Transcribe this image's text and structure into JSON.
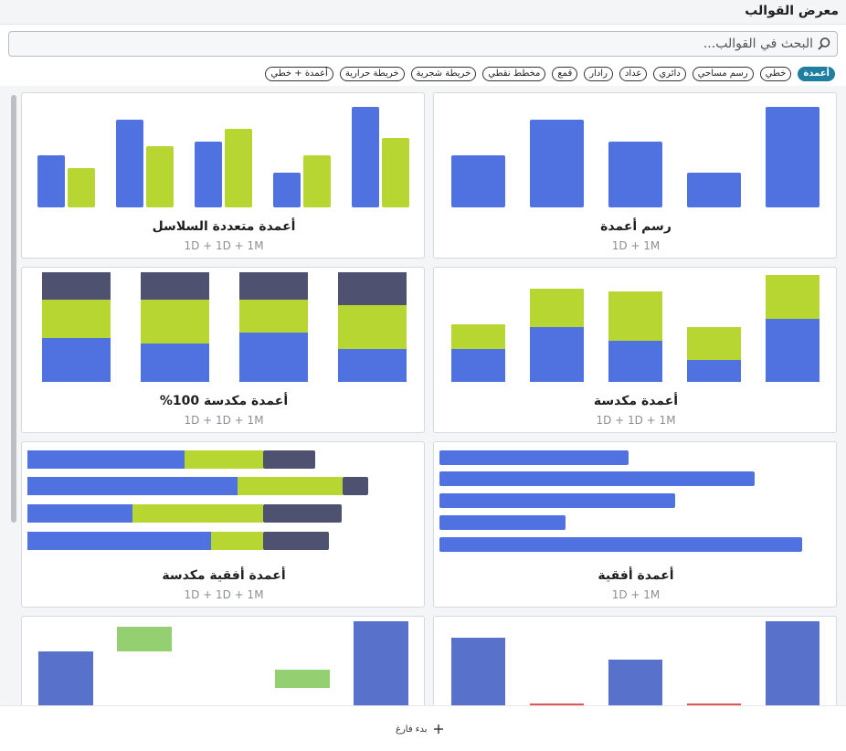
{
  "header": {
    "title": "معرض القوالب"
  },
  "search": {
    "placeholder": "البحث في القوالب..."
  },
  "chips": [
    "أعمدة",
    "خطي",
    "رسم مساحي",
    "دائري",
    "عداد",
    "رادار",
    "قمع",
    "مخطط نقطي",
    "خريطة شجرية",
    "خريطة حرارية",
    "أعمدة + خطي"
  ],
  "active_chip": "أعمدة",
  "colors": {
    "blue": "#5071e0",
    "green": "#b7d632",
    "slate": "#4e5270",
    "wf_blue": "#5872cc",
    "wf_green": "#94cf72",
    "wf_red": "#e05555",
    "accent": "#1e7fa0"
  },
  "cards": [
    {
      "title": "رسم أعمدة",
      "subtitle": "1D + 1M"
    },
    {
      "title": "أعمدة متعددة السلاسل",
      "subtitle": "1D + 1D + 1M"
    },
    {
      "title": "أعمدة مكدسة",
      "subtitle": "1D + 1D + 1M"
    },
    {
      "title": "أعمدة مكدسة 100%",
      "subtitle": "1D + 1D + 1M"
    },
    {
      "title": "أعمدة أفقية",
      "subtitle": "1D + 1M"
    },
    {
      "title": "أعمدة أفقية مكدسة",
      "subtitle": "1D + 1D + 1M"
    },
    {
      "title": "",
      "subtitle": ""
    },
    {
      "title": "",
      "subtitle": ""
    }
  ],
  "footer": {
    "add_blank_label": "بدء فارغ"
  }
}
